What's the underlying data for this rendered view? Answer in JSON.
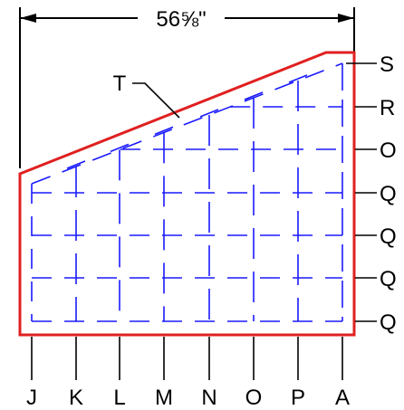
{
  "dimension": {
    "width_label": "56⅝\""
  },
  "panel_label": "T",
  "column_labels": [
    "J",
    "K",
    "L",
    "M",
    "N",
    "O",
    "P",
    "A"
  ],
  "row_labels": [
    "S",
    "R",
    "O",
    "Q",
    "Q",
    "Q",
    "Q"
  ],
  "colors": {
    "outline": "#e02020",
    "grid": "#1a1aff",
    "text": "#000000"
  }
}
